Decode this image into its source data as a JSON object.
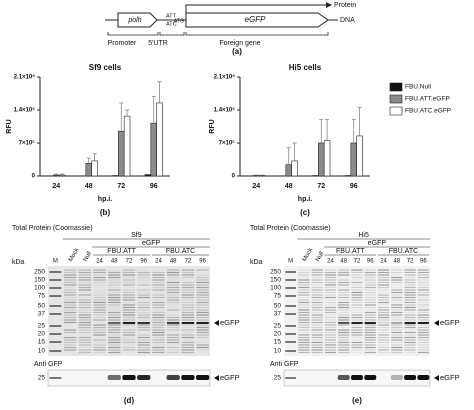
{
  "diagram": {
    "promoter_box": "polh",
    "att": "ATT",
    "atc": "ATC",
    "atg": "ATG",
    "gene_box": "eGFP",
    "protein": "Protein",
    "dna": "DNA",
    "promoter": "Promoter",
    "utr": "5'UTR",
    "foreign": "Foreign gene",
    "panel_label": "(a)"
  },
  "chart_data": [
    {
      "type": "bar",
      "title": "Sf9 cells",
      "x_label": "hp.i.",
      "y_label": "RFU",
      "panel_label": "(b)",
      "categories": [
        "24",
        "48",
        "72",
        "96"
      ],
      "series": [
        {
          "name": "FBU.Null",
          "color": "#111111",
          "values": [
            5000,
            5000,
            10000,
            30000
          ]
        },
        {
          "name": "FBU.ATT.eGFP",
          "color": "#8c8c8c",
          "values": [
            20000,
            270000,
            950000,
            1120000
          ],
          "errors": [
            20000,
            110000,
            600000,
            570000
          ]
        },
        {
          "name": "FBU.ATC.eGFP",
          "color": "#ffffff",
          "values": [
            20000,
            320000,
            1270000,
            1550000
          ],
          "errors": [
            20000,
            150000,
            130000,
            450000
          ]
        }
      ],
      "ylim": [
        0,
        2100000
      ],
      "yticks": [
        0,
        {
          "value": 700000,
          "label": "7×10⁵"
        },
        {
          "value": 1400000,
          "label": "1.4×10⁶"
        },
        {
          "value": 2100000,
          "label": "2.1×10⁶"
        }
      ]
    },
    {
      "type": "bar",
      "title": "Hi5 cells",
      "x_label": "hp.i.",
      "y_label": "RFU",
      "panel_label": "(c)",
      "categories": [
        "24",
        "48",
        "72",
        "96"
      ],
      "series": [
        {
          "color": "#111111",
          "values": [
            5000,
            5000,
            10000,
            10000
          ]
        },
        {
          "color": "#8c8c8c",
          "values": [
            10000,
            240000,
            700000,
            700000
          ],
          "errors": [
            10000,
            360000,
            500000,
            500000
          ]
        },
        {
          "color": "#ffffff",
          "values": [
            10000,
            320000,
            750000,
            850000
          ],
          "errors": [
            10000,
            380000,
            450000,
            600000
          ]
        }
      ],
      "ylim": [
        0,
        2100000
      ],
      "yticks": [
        0,
        {
          "value": 700000,
          "label": "7×10⁵"
        },
        {
          "value": 1400000,
          "label": "1.4×10⁶"
        },
        {
          "value": 2100000,
          "label": "2.1×10⁶"
        }
      ]
    }
  ],
  "gels": [
    {
      "title": "Total Protein (Coomassie)",
      "cell": "Sf9",
      "group": "eGFP",
      "subgroups": [
        "FBU.ATT",
        "FBU.ATC"
      ],
      "unit": "kDa",
      "lanes": [
        "M",
        "Mock",
        "Null",
        "24",
        "48",
        "72",
        "96",
        "24",
        "48",
        "72",
        "96"
      ],
      "markers": [
        250,
        150,
        100,
        75,
        50,
        37,
        25,
        20,
        15,
        10
      ],
      "band_label": "eGFP",
      "blot_title": "Anti GFP",
      "blot_marker": 25,
      "blot_label": "eGFP",
      "panel_label": "(d)"
    },
    {
      "title": "Total Protein (Coomassie)",
      "cell": "Hi5",
      "group": "eGFP",
      "subgroups": [
        "FBU.ATT",
        "FBU.ATC"
      ],
      "unit": "kDa",
      "lanes": [
        "M",
        "Mock",
        "Null",
        "24",
        "48",
        "72",
        "96",
        "24",
        "48",
        "72",
        "96"
      ],
      "markers": [
        250,
        150,
        100,
        75,
        50,
        37,
        25,
        20,
        15,
        10
      ],
      "band_label": "eGFP",
      "blot_title": "Anti GFP",
      "blot_marker": 25,
      "blot_label": "eGFP",
      "panel_label": "(e)"
    }
  ]
}
